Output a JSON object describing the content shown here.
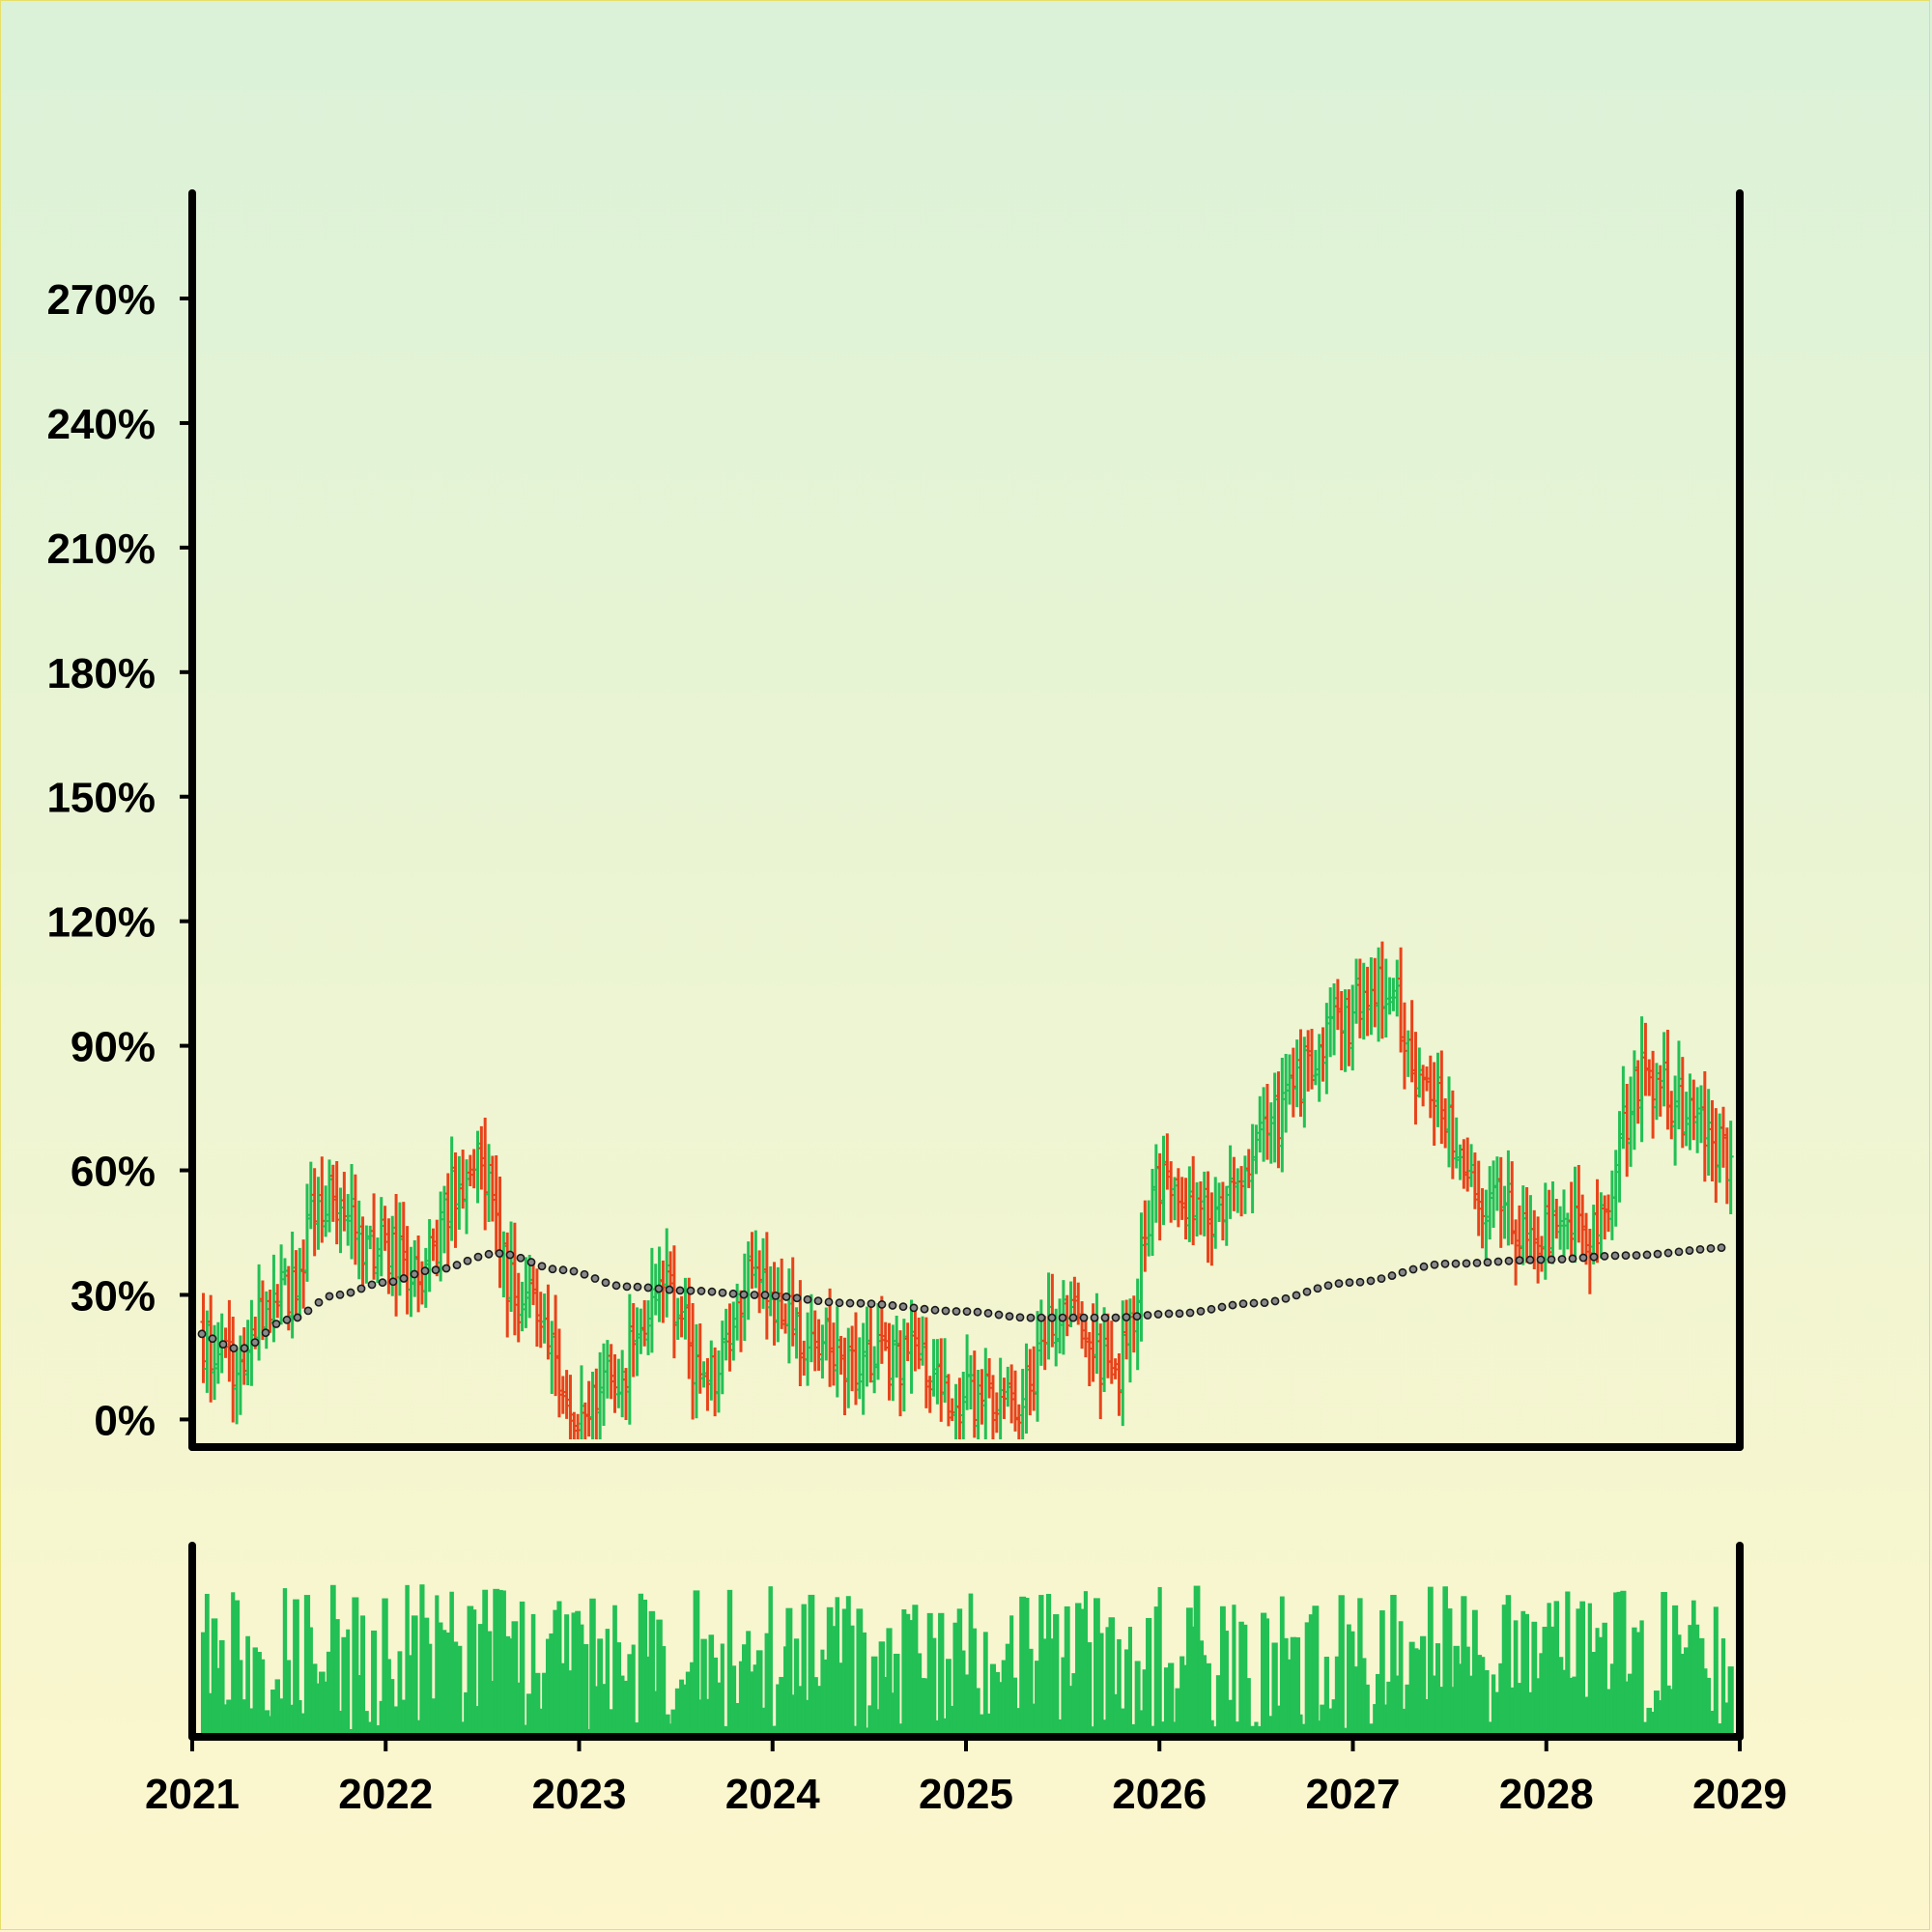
{
  "chart_data": {
    "type": "ohlc",
    "title": "",
    "xlabel": "",
    "ylabel": "",
    "x_range": [
      "2021-01-01",
      "2029-01-01"
    ],
    "ylim": [
      -2,
      298
    ],
    "y_tick_values": [
      0,
      30,
      60,
      90,
      120,
      150,
      180,
      210,
      240,
      270
    ],
    "y_tick_labels": [
      "0%",
      "30%",
      "60%",
      "90%",
      "120%",
      "150%",
      "180%",
      "210%",
      "240%",
      "270%"
    ],
    "x_tick_labels": [
      "2021",
      "2022",
      "2023",
      "2024",
      "2025",
      "2026",
      "2027",
      "2028",
      "2029"
    ],
    "bar_interval": "weekly",
    "up_color": "#22c055",
    "down_color": "#e8431a",
    "volume_color": "#22c055",
    "moving_average_style": "dotted",
    "anchor_points": [
      {
        "date": "2021-01-01",
        "close": 22
      },
      {
        "date": "2021-03-15",
        "close": 12
      },
      {
        "date": "2021-06-15",
        "close": 30
      },
      {
        "date": "2021-09-15",
        "close": 52
      },
      {
        "date": "2021-12-15",
        "close": 42
      },
      {
        "date": "2022-03-01",
        "close": 35
      },
      {
        "date": "2022-06-15",
        "close": 62
      },
      {
        "date": "2022-09-15",
        "close": 28
      },
      {
        "date": "2023-01-15",
        "close": 2
      },
      {
        "date": "2023-04-15",
        "close": 15
      },
      {
        "date": "2023-06-01",
        "close": 35
      },
      {
        "date": "2023-09-01",
        "close": 10
      },
      {
        "date": "2023-12-01",
        "close": 35
      },
      {
        "date": "2024-03-01",
        "close": 20
      },
      {
        "date": "2024-06-01",
        "close": 15
      },
      {
        "date": "2024-09-01",
        "close": 15
      },
      {
        "date": "2025-01-01",
        "close": 5
      },
      {
        "date": "2025-04-01",
        "close": 5
      },
      {
        "date": "2025-07-01",
        "close": 25
      },
      {
        "date": "2025-10-15",
        "close": 12
      },
      {
        "date": "2026-01-01",
        "close": 58
      },
      {
        "date": "2026-04-01",
        "close": 48
      },
      {
        "date": "2026-08-01",
        "close": 72
      },
      {
        "date": "2026-12-01",
        "close": 95
      },
      {
        "date": "2027-02-15",
        "close": 106
      },
      {
        "date": "2027-06-01",
        "close": 78
      },
      {
        "date": "2027-09-15",
        "close": 52
      },
      {
        "date": "2028-01-01",
        "close": 45
      },
      {
        "date": "2028-04-01",
        "close": 45
      },
      {
        "date": "2028-07-01",
        "close": 82
      },
      {
        "date": "2028-10-01",
        "close": 75
      },
      {
        "date": "2029-01-01",
        "close": 60
      }
    ],
    "moving_average": [
      {
        "date": "2021-01-01",
        "value": 21
      },
      {
        "date": "2021-04-01",
        "value": 17
      },
      {
        "date": "2021-07-01",
        "value": 24
      },
      {
        "date": "2021-10-01",
        "value": 30
      },
      {
        "date": "2022-01-01",
        "value": 33
      },
      {
        "date": "2022-04-01",
        "value": 36
      },
      {
        "date": "2022-08-01",
        "value": 40
      },
      {
        "date": "2022-12-01",
        "value": 36
      },
      {
        "date": "2023-04-01",
        "value": 32
      },
      {
        "date": "2023-08-01",
        "value": 31
      },
      {
        "date": "2023-12-01",
        "value": 30
      },
      {
        "date": "2024-06-01",
        "value": 28
      },
      {
        "date": "2025-01-01",
        "value": 26
      },
      {
        "date": "2025-05-01",
        "value": 24.5
      },
      {
        "date": "2025-10-01",
        "value": 24.5
      },
      {
        "date": "2026-02-01",
        "value": 25.5
      },
      {
        "date": "2026-07-01",
        "value": 28
      },
      {
        "date": "2027-01-01",
        "value": 33
      },
      {
        "date": "2027-07-01",
        "value": 37.5
      },
      {
        "date": "2028-01-01",
        "value": 38.5
      },
      {
        "date": "2028-06-01",
        "value": 39.5
      },
      {
        "date": "2029-01-01",
        "value": 41.5
      }
    ]
  }
}
